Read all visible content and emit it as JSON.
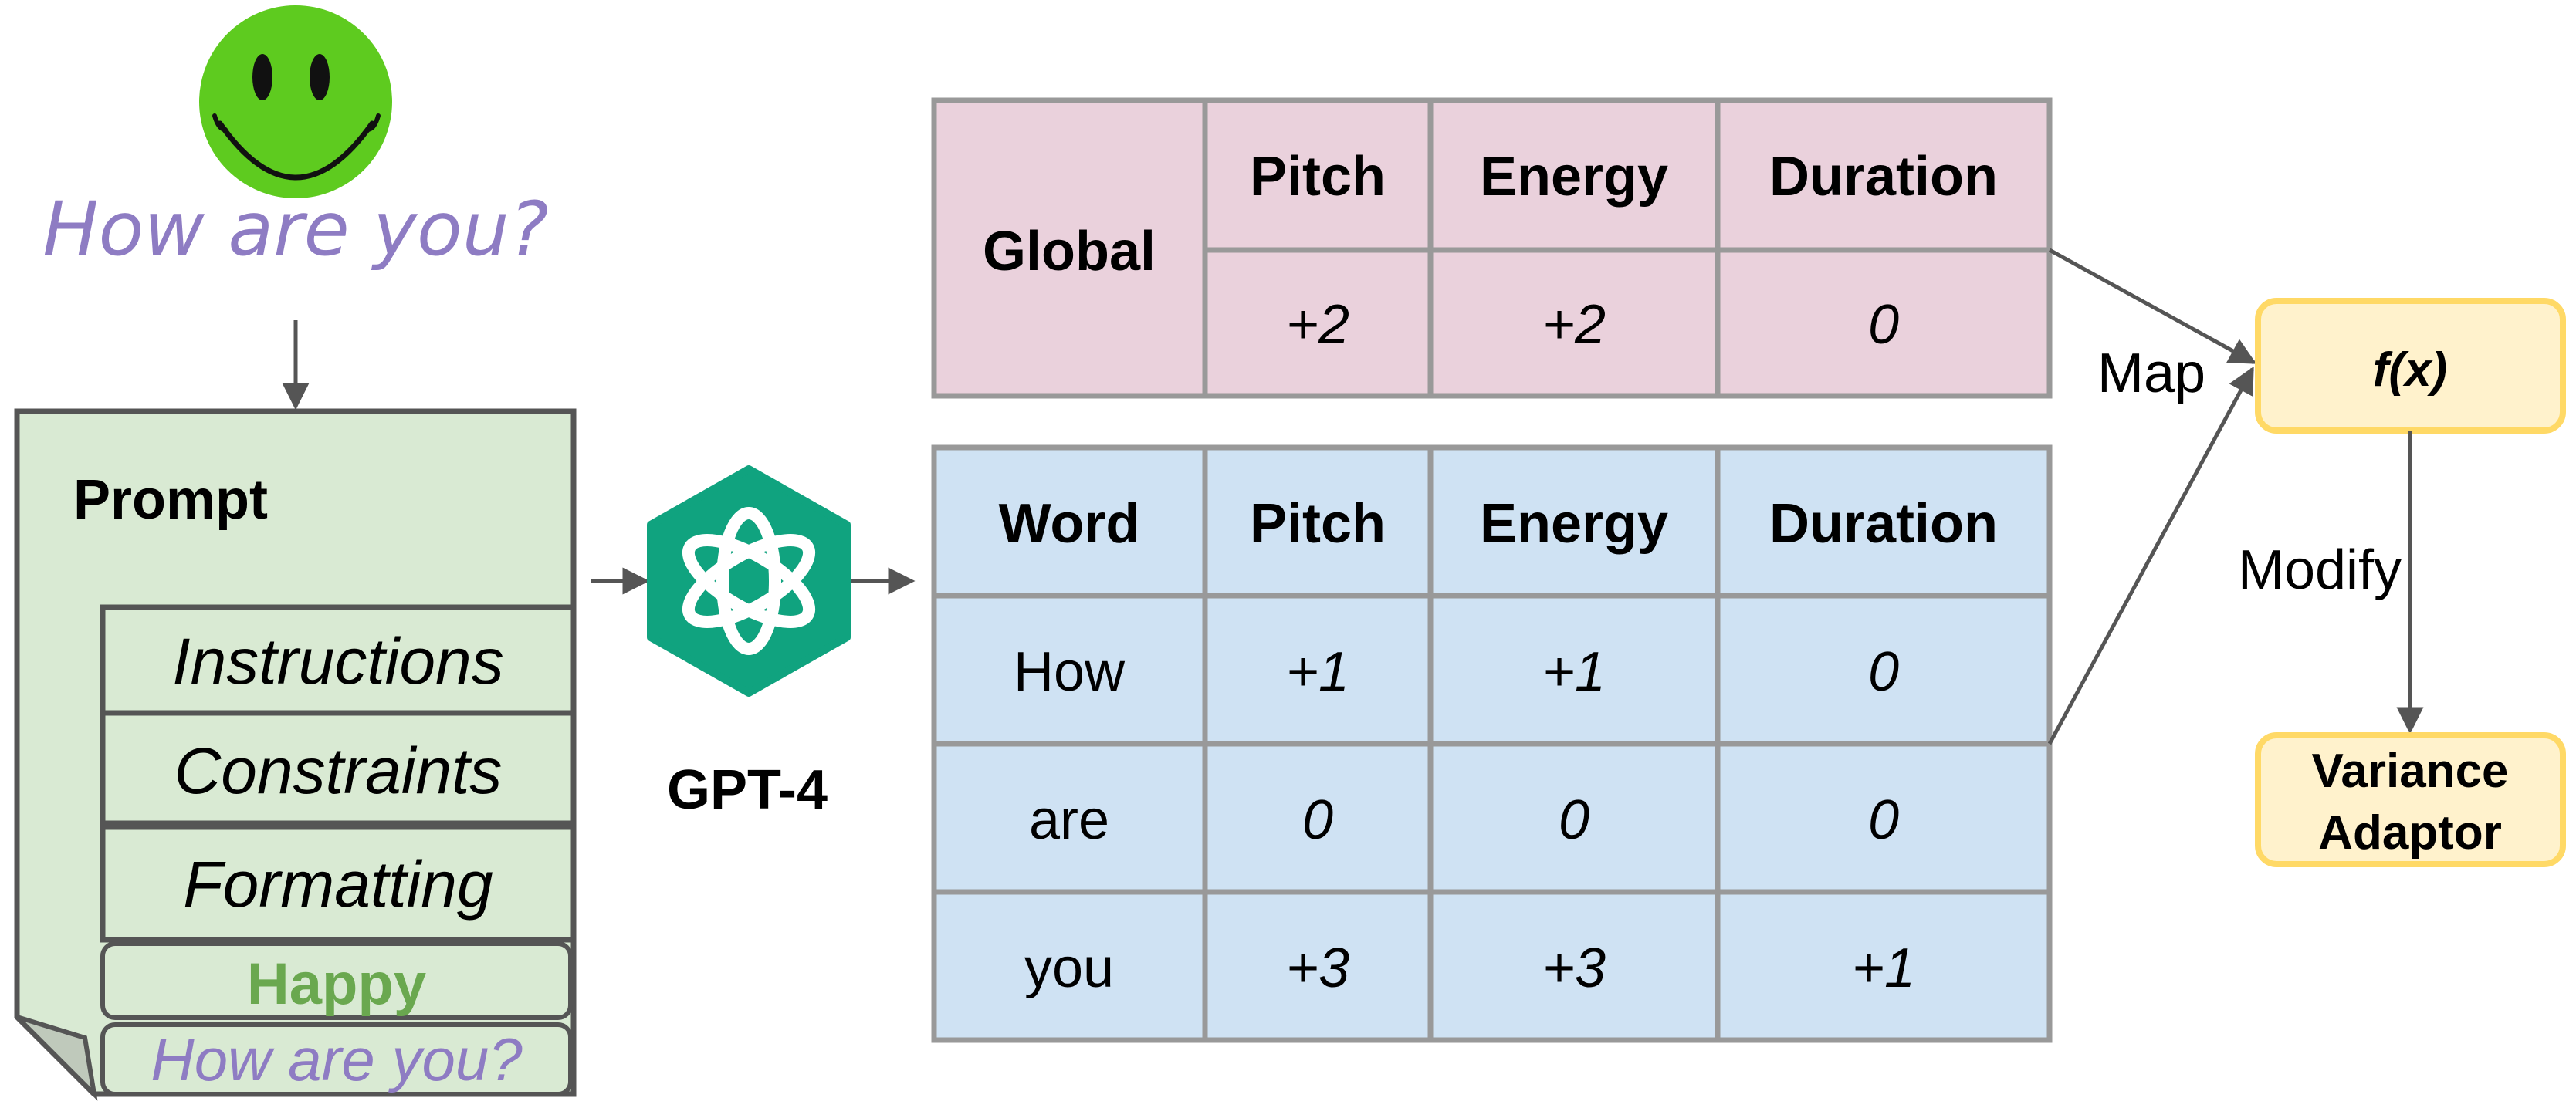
{
  "speech": {
    "text": "How are you?",
    "emoji": "smiley-face"
  },
  "prompt": {
    "title": "Prompt",
    "sections": [
      "Instructions",
      "Constraints",
      "Formatting"
    ],
    "emotion": "Happy",
    "input": "How are you?"
  },
  "model": {
    "name": "GPT-4",
    "icon": "openai-logo-icon"
  },
  "global_table": {
    "row_label": "Global",
    "headers": [
      "Pitch",
      "Energy",
      "Duration"
    ],
    "values": [
      "+2",
      "+2",
      "0"
    ]
  },
  "word_table": {
    "headers": [
      "Word",
      "Pitch",
      "Energy",
      "Duration"
    ],
    "rows": [
      [
        "How",
        "+1",
        "+1",
        "0"
      ],
      [
        "are",
        "0",
        "0",
        "0"
      ],
      [
        "you",
        "+3",
        "+3",
        "+1"
      ]
    ]
  },
  "function_box": {
    "label": "f(x)"
  },
  "adaptor_box": {
    "line1": "Variance",
    "line2": "Adaptor"
  },
  "edges": {
    "map": "Map",
    "modify": "Modify"
  },
  "colors": {
    "smiley": "#5ECB1F",
    "lavender": "#8E7CC3",
    "prompt_fill": "#D9EAD3",
    "happy": "#6AA84F",
    "gpt": "#10A37F",
    "global_fill": "#EAD1DC",
    "word_fill": "#CFE2F3",
    "box_fill": "#FFF2CC",
    "box_border": "#FFD966",
    "line": "#555555",
    "table_border": "#999999"
  }
}
